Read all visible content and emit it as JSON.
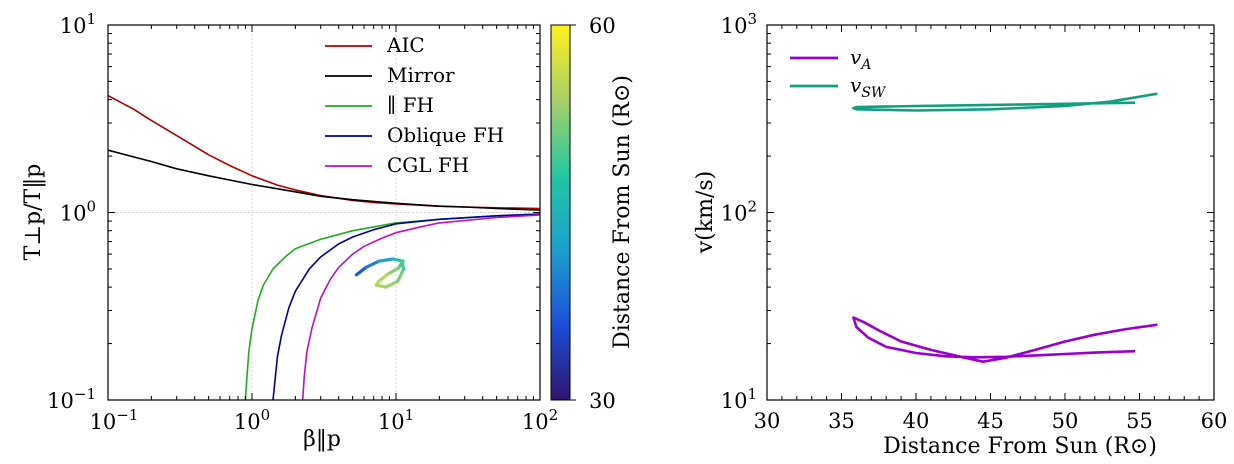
{
  "chart_data": [
    {
      "type": "line",
      "xlabel": "β‖p",
      "ylabel": "T⊥p/T‖p",
      "xscale": "log",
      "yscale": "log",
      "xlim": [
        0.1,
        100
      ],
      "ylim": [
        0.1,
        10
      ],
      "grid": true,
      "legend_position": "top-right",
      "x_tick_labels": [
        {
          "value": 0.1,
          "base": "10",
          "exp": "−1"
        },
        {
          "value": 1,
          "base": "10",
          "exp": "0"
        },
        {
          "value": 10,
          "base": "10",
          "exp": "1"
        },
        {
          "value": 100,
          "base": "10",
          "exp": "2"
        }
      ],
      "y_tick_labels": [
        {
          "value": 0.1,
          "base": "10",
          "exp": "−1"
        },
        {
          "value": 1,
          "base": "10",
          "exp": "0"
        },
        {
          "value": 10,
          "base": "10",
          "exp": "1"
        }
      ],
      "series": [
        {
          "name": "AIC",
          "color": "#b00000",
          "x": [
            0.1,
            0.15,
            0.2,
            0.3,
            0.5,
            0.7,
            1,
            1.5,
            2,
            3,
            5,
            7,
            10,
            20,
            30,
            50,
            100
          ],
          "y": [
            4.2,
            3.56,
            3.1,
            2.57,
            2.03,
            1.78,
            1.57,
            1.4,
            1.32,
            1.23,
            1.16,
            1.13,
            1.11,
            1.08,
            1.07,
            1.06,
            1.05
          ]
        },
        {
          "name": "Mirror",
          "color": "#000000",
          "x": [
            0.1,
            0.2,
            0.3,
            0.5,
            1,
            2,
            3,
            5,
            10,
            20,
            30,
            50,
            100
          ],
          "y": [
            2.15,
            1.87,
            1.71,
            1.57,
            1.41,
            1.29,
            1.22,
            1.17,
            1.12,
            1.08,
            1.07,
            1.05,
            1.03
          ]
        },
        {
          "name": "∥ FH",
          "color": "#22aa22",
          "x": [
            0.9,
            0.92,
            0.95,
            1.0,
            1.1,
            1.2,
            1.4,
            1.7,
            2,
            3,
            5,
            10,
            20,
            50,
            100
          ],
          "y": [
            0.1,
            0.13,
            0.18,
            0.24,
            0.34,
            0.41,
            0.5,
            0.58,
            0.64,
            0.72,
            0.8,
            0.88,
            0.92,
            0.96,
            0.98
          ]
        },
        {
          "name": "Oblique FH",
          "color": "#000099",
          "x": [
            1.4,
            1.45,
            1.5,
            1.6,
            1.8,
            2,
            2.5,
            3,
            4,
            5,
            7,
            10,
            20,
            50,
            100
          ],
          "y": [
            0.1,
            0.13,
            0.17,
            0.22,
            0.31,
            0.38,
            0.5,
            0.58,
            0.68,
            0.74,
            0.81,
            0.87,
            0.92,
            0.96,
            0.98
          ]
        },
        {
          "name": "CGL FH",
          "color": "#bb11bb",
          "x": [
            2.25,
            2.3,
            2.4,
            2.6,
            3,
            3.5,
            4,
            5,
            6,
            8,
            10,
            15,
            20,
            50,
            100
          ],
          "y": [
            0.1,
            0.13,
            0.18,
            0.24,
            0.35,
            0.44,
            0.51,
            0.6,
            0.66,
            0.73,
            0.78,
            0.84,
            0.88,
            0.94,
            0.97
          ]
        }
      ],
      "trajectory": {
        "colormap": "viridis",
        "colorbar_label": "Distance From Sun (R⊙)",
        "colorbar_range": [
          30,
          60
        ],
        "colorbar_ticks": [
          "30",
          "60"
        ],
        "points": [
          {
            "x": 5.3,
            "y": 0.465,
            "r": 36
          },
          {
            "x": 6.2,
            "y": 0.51,
            "r": 38
          },
          {
            "x": 7.6,
            "y": 0.55,
            "r": 41
          },
          {
            "x": 9.5,
            "y": 0.565,
            "r": 44
          },
          {
            "x": 11.2,
            "y": 0.55,
            "r": 48
          },
          {
            "x": 10.4,
            "y": 0.505,
            "r": 51
          },
          {
            "x": 8.8,
            "y": 0.47,
            "r": 54
          },
          {
            "x": 7.6,
            "y": 0.43,
            "r": 56
          },
          {
            "x": 7.3,
            "y": 0.41,
            "r": 55
          },
          {
            "x": 8.5,
            "y": 0.4,
            "r": 54
          },
          {
            "x": 10.3,
            "y": 0.43,
            "r": 53
          },
          {
            "x": 11.3,
            "y": 0.5,
            "r": 51
          },
          {
            "x": 11.0,
            "y": 0.55,
            "r": 48
          }
        ]
      }
    },
    {
      "type": "line",
      "xlabel": "Distance From Sun (R⊙)",
      "ylabel": "v(km/s)",
      "xscale": "linear",
      "yscale": "log",
      "xlim": [
        30,
        60
      ],
      "ylim": [
        10,
        1000
      ],
      "x_ticks": [
        30,
        35,
        40,
        45,
        50,
        55,
        60
      ],
      "y_tick_labels": [
        {
          "value": 10,
          "base": "10",
          "exp": "1"
        },
        {
          "value": 100,
          "base": "10",
          "exp": "2"
        },
        {
          "value": 1000,
          "base": "10",
          "exp": "3"
        }
      ],
      "legend_position": "top-left",
      "series": [
        {
          "name": "vA",
          "color": "#9900cc",
          "x": [
            54.7,
            52,
            50,
            48,
            46,
            44,
            42,
            40,
            38,
            36.8,
            36,
            35.8,
            36.5,
            37.5,
            39,
            41,
            43,
            44.5,
            46,
            48,
            50,
            52,
            54,
            56.2
          ],
          "y": [
            18.2,
            17.9,
            17.6,
            17.3,
            17.0,
            16.9,
            17.1,
            17.8,
            19.2,
            21.5,
            24.5,
            27.5,
            26.0,
            23.5,
            20.5,
            18.5,
            17.0,
            16.0,
            16.8,
            18.5,
            20.5,
            22.3,
            23.8,
            25.2
          ]
        },
        {
          "name": "vSW",
          "color": "#10a080",
          "x": [
            54.7,
            50,
            45,
            40,
            36,
            35.8,
            36,
            40,
            45,
            50,
            53,
            56.2
          ],
          "y": [
            385,
            380,
            375,
            370,
            365,
            360,
            355,
            350,
            355,
            370,
            390,
            430
          ]
        }
      ]
    }
  ]
}
